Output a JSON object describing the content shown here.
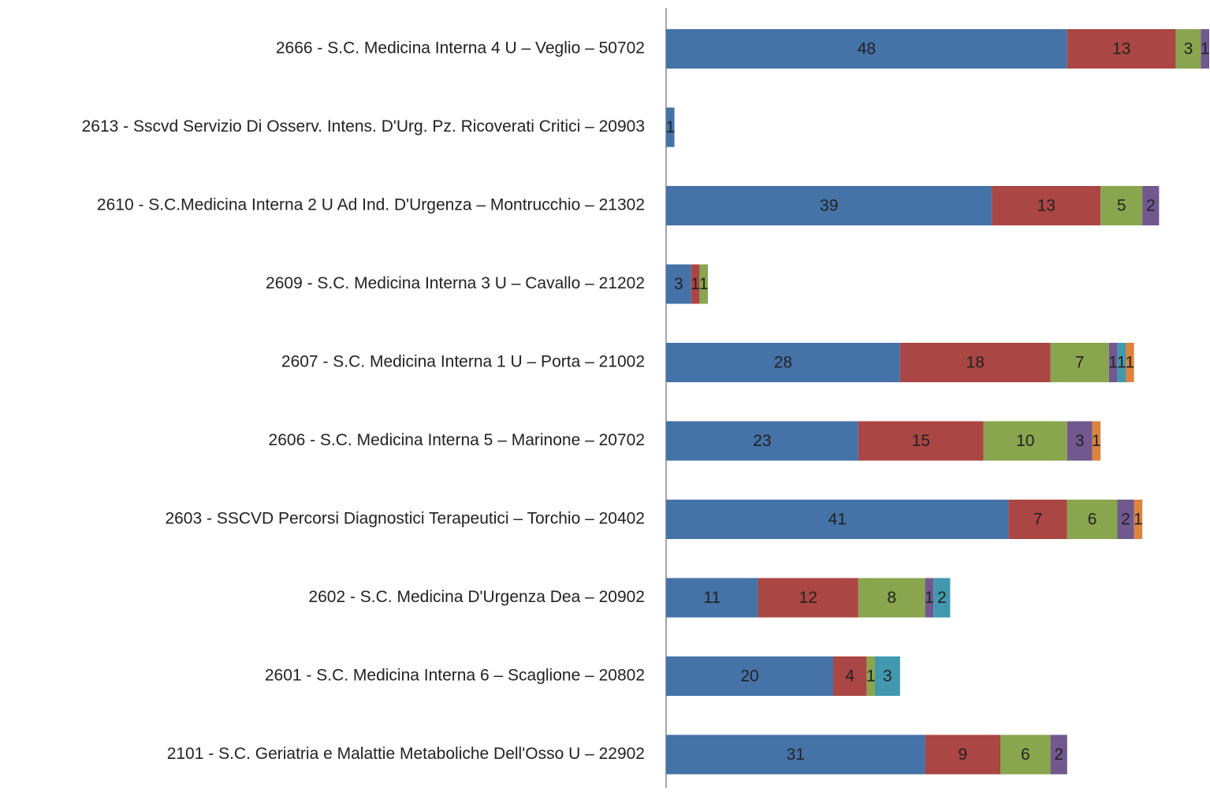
{
  "chart_data": {
    "type": "stacked_barh",
    "categories": [
      "2666 - S.C. Medicina Interna 4 U – Veglio – 50702",
      "2613 - Sscvd Servizio Di Osserv. Intens. D'Urg. Pz. Ricoverati Critici – 20903",
      "2610 - S.C.Medicina Interna 2 U Ad Ind. D'Urgenza – Montrucchio – 21302",
      "2609 - S.C. Medicina Interna 3 U – Cavallo – 21202",
      "2607 - S.C. Medicina Interna 1 U – Porta – 21002",
      "2606 - S.C. Medicina Interna 5 – Marinone – 20702",
      "2603 - SSCVD Percorsi Diagnostici Terapeutici – Torchio – 20402",
      "2602 - S.C. Medicina D'Urgenza Dea – 20902",
      "2601 - S.C. Medicina Interna 6 – Scaglione – 20802",
      "2101 - S.C. Geriatria e Malattie Metaboliche Dell'Osso U – 22902"
    ],
    "series": [
      {
        "color": "#4572a7",
        "values": [
          48,
          1,
          39,
          3,
          28,
          23,
          41,
          11,
          20,
          31
        ]
      },
      {
        "color": "#aa4643",
        "values": [
          13,
          null,
          13,
          1,
          18,
          15,
          7,
          12,
          4,
          9
        ]
      },
      {
        "color": "#89a54e",
        "values": [
          3,
          null,
          5,
          1,
          7,
          10,
          6,
          8,
          1,
          6
        ]
      },
      {
        "color": "#71588f",
        "values": [
          1,
          null,
          2,
          null,
          1,
          3,
          2,
          1,
          null,
          2
        ]
      },
      {
        "color": "#4198af",
        "values": [
          null,
          null,
          null,
          null,
          1,
          null,
          null,
          2,
          3,
          null
        ]
      },
      {
        "color": "#db843d",
        "values": [
          null,
          null,
          null,
          null,
          1,
          1,
          1,
          null,
          null,
          null
        ]
      }
    ],
    "xlim": [
      0,
      65
    ]
  }
}
